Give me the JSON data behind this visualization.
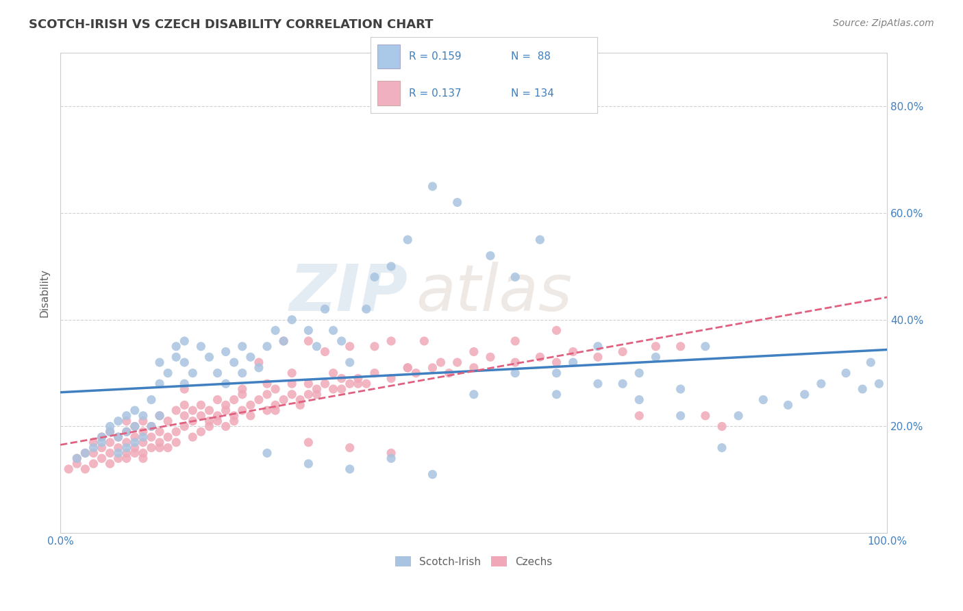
{
  "title": "SCOTCH-IRISH VS CZECH DISABILITY CORRELATION CHART",
  "source": "Source: ZipAtlas.com",
  "ylabel": "Disability",
  "xlim": [
    0.0,
    1.0
  ],
  "ylim": [
    0.0,
    0.9
  ],
  "y_ticks": [
    0.2,
    0.4,
    0.6,
    0.8
  ],
  "y_tick_labels": [
    "20.0%",
    "40.0%",
    "60.0%",
    "80.0%"
  ],
  "scotch_irish_color": "#a8c4e0",
  "czech_color": "#f0a8b8",
  "scotch_irish_line_color": "#4080c0",
  "czech_line_color": "#e06080",
  "legend_blue_color": "#aac8e8",
  "legend_pink_color": "#f0b0c0",
  "R_scotch": 0.159,
  "N_scotch": 88,
  "R_czech": 0.137,
  "N_czech": 134,
  "scotch_irish_x": [
    0.02,
    0.03,
    0.04,
    0.05,
    0.05,
    0.06,
    0.06,
    0.07,
    0.07,
    0.07,
    0.08,
    0.08,
    0.08,
    0.09,
    0.09,
    0.09,
    0.1,
    0.1,
    0.11,
    0.11,
    0.12,
    0.12,
    0.12,
    0.13,
    0.14,
    0.14,
    0.15,
    0.15,
    0.15,
    0.16,
    0.17,
    0.18,
    0.19,
    0.2,
    0.2,
    0.21,
    0.22,
    0.22,
    0.23,
    0.24,
    0.25,
    0.26,
    0.27,
    0.28,
    0.3,
    0.31,
    0.32,
    0.33,
    0.34,
    0.35,
    0.37,
    0.38,
    0.4,
    0.42,
    0.45,
    0.48,
    0.5,
    0.52,
    0.55,
    0.58,
    0.6,
    0.62,
    0.65,
    0.68,
    0.7,
    0.72,
    0.75,
    0.78,
    0.8,
    0.82,
    0.85,
    0.88,
    0.9,
    0.92,
    0.95,
    0.97,
    0.98,
    0.99,
    0.55,
    0.6,
    0.65,
    0.7,
    0.75,
    0.25,
    0.3,
    0.35,
    0.4,
    0.45
  ],
  "scotch_irish_y": [
    0.14,
    0.15,
    0.16,
    0.17,
    0.18,
    0.19,
    0.2,
    0.15,
    0.18,
    0.21,
    0.16,
    0.19,
    0.22,
    0.17,
    0.2,
    0.23,
    0.18,
    0.22,
    0.2,
    0.25,
    0.22,
    0.28,
    0.32,
    0.3,
    0.33,
    0.35,
    0.28,
    0.32,
    0.36,
    0.3,
    0.35,
    0.33,
    0.3,
    0.28,
    0.34,
    0.32,
    0.35,
    0.3,
    0.33,
    0.31,
    0.35,
    0.38,
    0.36,
    0.4,
    0.38,
    0.35,
    0.42,
    0.38,
    0.36,
    0.32,
    0.42,
    0.48,
    0.5,
    0.55,
    0.65,
    0.62,
    0.26,
    0.52,
    0.48,
    0.55,
    0.3,
    0.32,
    0.35,
    0.28,
    0.3,
    0.33,
    0.27,
    0.35,
    0.16,
    0.22,
    0.25,
    0.24,
    0.26,
    0.28,
    0.3,
    0.27,
    0.32,
    0.28,
    0.3,
    0.26,
    0.28,
    0.25,
    0.22,
    0.15,
    0.13,
    0.12,
    0.14,
    0.11
  ],
  "czech_x": [
    0.01,
    0.02,
    0.02,
    0.03,
    0.03,
    0.04,
    0.04,
    0.04,
    0.05,
    0.05,
    0.05,
    0.06,
    0.06,
    0.06,
    0.06,
    0.07,
    0.07,
    0.07,
    0.08,
    0.08,
    0.08,
    0.08,
    0.09,
    0.09,
    0.09,
    0.1,
    0.1,
    0.1,
    0.11,
    0.11,
    0.12,
    0.12,
    0.12,
    0.13,
    0.13,
    0.14,
    0.14,
    0.15,
    0.15,
    0.15,
    0.16,
    0.16,
    0.17,
    0.17,
    0.18,
    0.18,
    0.19,
    0.19,
    0.2,
    0.2,
    0.21,
    0.21,
    0.22,
    0.22,
    0.23,
    0.24,
    0.25,
    0.25,
    0.26,
    0.26,
    0.27,
    0.28,
    0.28,
    0.29,
    0.3,
    0.3,
    0.31,
    0.32,
    0.33,
    0.34,
    0.35,
    0.36,
    0.37,
    0.38,
    0.4,
    0.42,
    0.43,
    0.45,
    0.47,
    0.48,
    0.5,
    0.52,
    0.55,
    0.58,
    0.6,
    0.62,
    0.65,
    0.68,
    0.7,
    0.72,
    0.75,
    0.78,
    0.8,
    0.35,
    0.4,
    0.28,
    0.3,
    0.22,
    0.24,
    0.2,
    0.25,
    0.27,
    0.32,
    0.33,
    0.36,
    0.38,
    0.42,
    0.44,
    0.46,
    0.5,
    0.55,
    0.6,
    0.3,
    0.35,
    0.4,
    0.1,
    0.12,
    0.08,
    0.09,
    0.1,
    0.11,
    0.13,
    0.14,
    0.16,
    0.17,
    0.18,
    0.19,
    0.21,
    0.23,
    0.26,
    0.29,
    0.31,
    0.34,
    0.15
  ],
  "czech_y": [
    0.12,
    0.13,
    0.14,
    0.12,
    0.15,
    0.13,
    0.15,
    0.17,
    0.14,
    0.16,
    0.18,
    0.13,
    0.15,
    0.17,
    0.19,
    0.14,
    0.16,
    0.18,
    0.15,
    0.17,
    0.19,
    0.21,
    0.16,
    0.18,
    0.2,
    0.17,
    0.19,
    0.21,
    0.18,
    0.2,
    0.17,
    0.19,
    0.22,
    0.18,
    0.21,
    0.19,
    0.23,
    0.2,
    0.22,
    0.24,
    0.21,
    0.23,
    0.22,
    0.24,
    0.21,
    0.23,
    0.22,
    0.25,
    0.2,
    0.23,
    0.22,
    0.25,
    0.23,
    0.26,
    0.24,
    0.25,
    0.23,
    0.26,
    0.24,
    0.27,
    0.25,
    0.26,
    0.28,
    0.25,
    0.26,
    0.28,
    0.27,
    0.28,
    0.27,
    0.29,
    0.28,
    0.29,
    0.28,
    0.3,
    0.29,
    0.31,
    0.3,
    0.31,
    0.3,
    0.32,
    0.31,
    0.33,
    0.32,
    0.33,
    0.32,
    0.34,
    0.33,
    0.34,
    0.22,
    0.35,
    0.35,
    0.22,
    0.2,
    0.35,
    0.36,
    0.3,
    0.36,
    0.27,
    0.32,
    0.24,
    0.28,
    0.36,
    0.34,
    0.3,
    0.28,
    0.35,
    0.31,
    0.36,
    0.32,
    0.34,
    0.36,
    0.38,
    0.17,
    0.16,
    0.15,
    0.14,
    0.16,
    0.14,
    0.15,
    0.15,
    0.16,
    0.16,
    0.17,
    0.18,
    0.19,
    0.2,
    0.21,
    0.21,
    0.22,
    0.23,
    0.24,
    0.26,
    0.27,
    0.27
  ],
  "watermark_zip": "ZIP",
  "watermark_atlas": "atlas",
  "grid_color": "#cccccc",
  "background_color": "#ffffff",
  "title_color": "#404040",
  "source_color": "#808080",
  "axis_label_color": "#606060",
  "tick_label_color": "#4080c0"
}
